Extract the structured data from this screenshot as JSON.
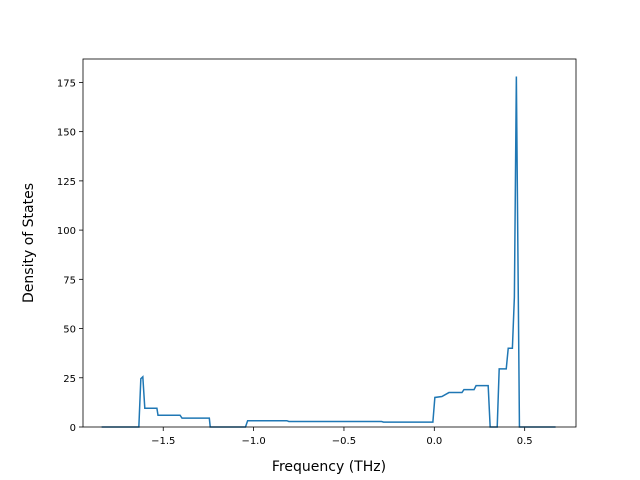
{
  "chart_data": {
    "type": "line",
    "xlabel": "Frequency (THz)",
    "ylabel": "Density of States",
    "x": [
      -1.841,
      -1.635,
      -1.624,
      -1.613,
      -1.602,
      -1.535,
      -1.529,
      -1.407,
      -1.396,
      -1.245,
      -1.24,
      -1.045,
      -1.033,
      -0.816,
      -0.805,
      -0.292,
      -0.281,
      -0.008,
      0.003,
      0.042,
      0.081,
      0.153,
      0.164,
      0.22,
      0.231,
      0.298,
      0.309,
      0.348,
      0.359,
      0.398,
      0.409,
      0.432,
      0.443,
      0.454,
      0.471,
      0.671
    ],
    "series": [
      {
        "color": "#1f77b4",
        "values": [
          0,
          0,
          24.5,
          25.5,
          9.5,
          9.5,
          6,
          6,
          4.5,
          4.5,
          0,
          0,
          3.2,
          3.2,
          2.8,
          2.8,
          2.5,
          2.5,
          15,
          15.5,
          17.5,
          17.5,
          19,
          19,
          21,
          21,
          0,
          0,
          29.5,
          29.5,
          40,
          40,
          66,
          178,
          0,
          0
        ]
      }
    ],
    "xlim": [
      -1.944,
      0.784
    ],
    "ylim": [
      0,
      186.9
    ],
    "xticks": [
      {
        "value": -1.5,
        "label": "−1.5"
      },
      {
        "value": -1.0,
        "label": "−1.0"
      },
      {
        "value": -0.5,
        "label": "−0.5"
      },
      {
        "value": 0.0,
        "label": "0.0"
      },
      {
        "value": 0.5,
        "label": "0.5"
      }
    ],
    "yticks": [
      0,
      25,
      50,
      75,
      100,
      125,
      150,
      175
    ]
  }
}
